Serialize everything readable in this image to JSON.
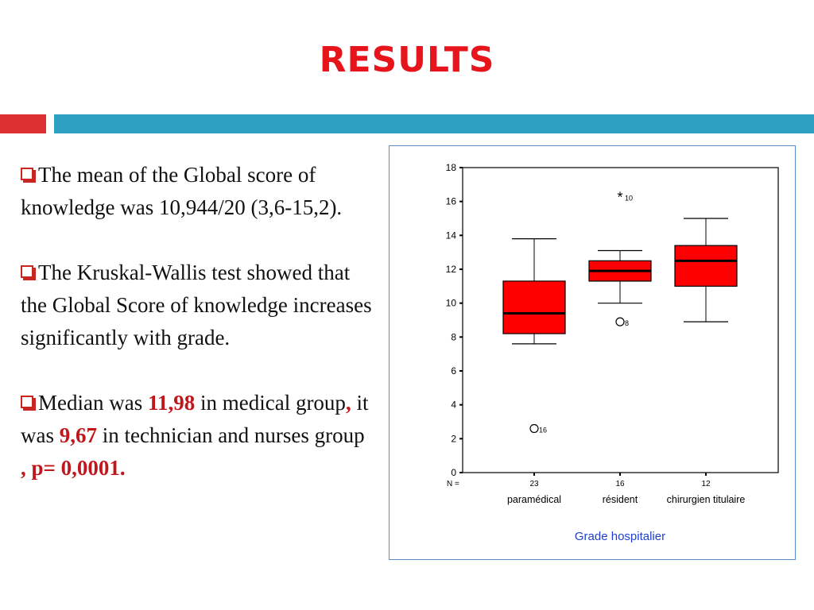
{
  "slide": {
    "title": "RESULTS"
  },
  "bullets": [
    {
      "parts": [
        {
          "text": "The mean of the Global score of knowledge was 10,944/20 (3,6-15,2).",
          "hl": false
        }
      ]
    },
    {
      "parts": [
        {
          "text": "The Kruskal-Wallis test showed that the Global Score of knowledge increases significantly with grade.",
          "hl": false
        }
      ]
    },
    {
      "parts": [
        {
          "text": "Median was ",
          "hl": false
        },
        {
          "text": "11,98",
          "hl": true
        },
        {
          "text": " in medical group",
          "hl": false
        },
        {
          "text": ",",
          "hl": true
        },
        {
          "text": " it was ",
          "hl": false
        },
        {
          "text": "9,67",
          "hl": true
        },
        {
          "text": " in technician and nurses group ",
          "hl": false
        },
        {
          "text": ", p= 0,0001.",
          "hl": true
        }
      ]
    }
  ],
  "colors": {
    "title": "#e8141b",
    "box_fill": "#ff0000",
    "xlabel": "#1f3fd1",
    "highlight": "#c0171c"
  },
  "chart_data": {
    "type": "boxplot",
    "xlabel": "Grade hospitalier",
    "ylabel": "",
    "ylim": [
      0,
      18
    ],
    "yticks": [
      0,
      2,
      4,
      6,
      8,
      10,
      12,
      14,
      16,
      18
    ],
    "n_label": "N =",
    "grid": false,
    "categories": [
      "paramédical",
      "résident",
      "chirurgien titulaire"
    ],
    "boxes": [
      {
        "category": "paramédical",
        "n": "23",
        "whisker_low": 7.6,
        "q1": 8.2,
        "median": 9.4,
        "q3": 11.3,
        "whisker_high": 13.8,
        "outliers": [
          {
            "value": 2.6,
            "marker": "circle",
            "label": "16"
          }
        ]
      },
      {
        "category": "résident",
        "n": "16",
        "whisker_low": 10.0,
        "q1": 11.3,
        "median": 11.9,
        "q3": 12.5,
        "whisker_high": 13.1,
        "outliers": [
          {
            "value": 8.9,
            "marker": "circle",
            "label": "8"
          },
          {
            "value": 16.3,
            "marker": "star",
            "label": "10"
          }
        ]
      },
      {
        "category": "chirurgien titulaire",
        "n": "12",
        "whisker_low": 8.9,
        "q1": 11.0,
        "median": 12.5,
        "q3": 13.4,
        "whisker_high": 15.0,
        "outliers": []
      }
    ]
  }
}
